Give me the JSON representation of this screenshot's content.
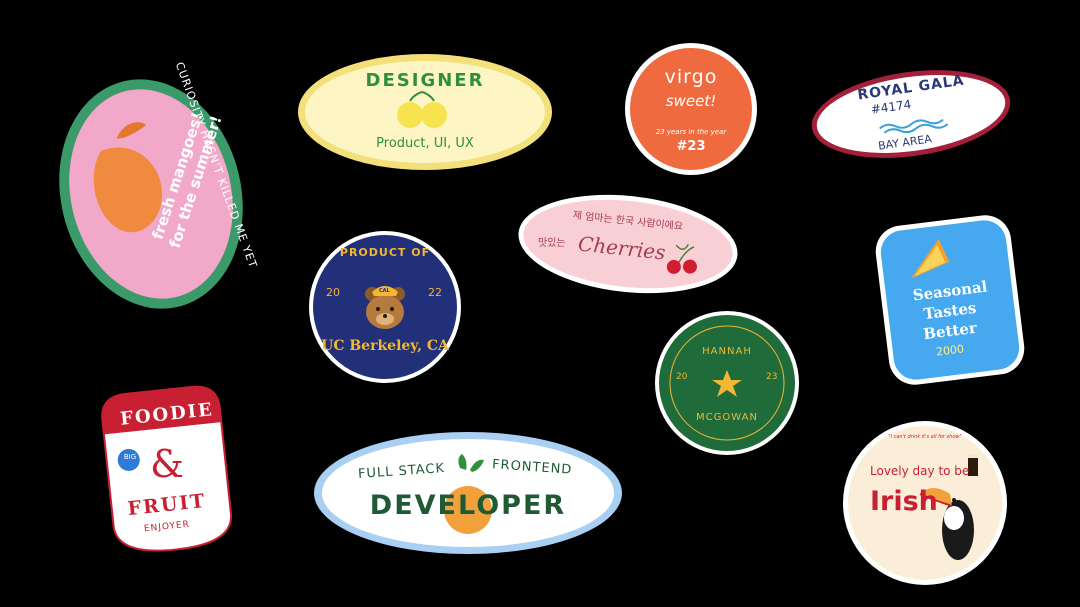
{
  "mango": {
    "text": "fresh mangoes!\nfor the summer!",
    "arc": "CURIOSITY HASN'T KILLED ME YET",
    "colors": {
      "bg": "#f2a8c8",
      "ring": "#3a9a6a"
    }
  },
  "designer": {
    "title": "DESIGNER",
    "subtitle": "Product, UI, UX",
    "colors": {
      "bg": "#fdf6c4",
      "ring": "#f3e07a",
      "text": "#2f8f3a"
    }
  },
  "virgo": {
    "title": "virgo",
    "subtitle": "sweet!",
    "note": "23 years in the year",
    "number": "#23",
    "colors": {
      "bg": "#ef6a3e",
      "ring": "#ffffff"
    }
  },
  "royal_gala": {
    "title": "ROYAL GALA",
    "code": "#4174",
    "area": "BAY AREA",
    "colors": {
      "ring": "#a51f3a",
      "text": "#2a3878",
      "wave": "#3aa0d8"
    }
  },
  "cherries": {
    "top": "제 엄마는 한국 사람이에요",
    "side": "맛있는",
    "title": "Cherries",
    "colors": {
      "bg": "#f9cfd6",
      "ring": "#ffffff",
      "text": "#a53d4d",
      "cherry": "#d21d2e"
    }
  },
  "berkeley": {
    "top": "PRODUCT OF",
    "year_left": "20",
    "year_right": "22",
    "bottom": "UC Berkeley, CA",
    "cap": "CAL",
    "colors": {
      "bg": "#22307a",
      "text": "#f2b733"
    }
  },
  "seasonal": {
    "line1": "Seasonal",
    "line2": "Tastes",
    "line3": "Better",
    "year": "2000",
    "colors": {
      "bg": "#46a9f0",
      "ring": "#ffffff"
    }
  },
  "hannah": {
    "top": "HANNAH",
    "year_left": "20",
    "year_right": "23",
    "bottom": "MCGOWAN",
    "colors": {
      "bg": "#1f6b3a",
      "text": "#f2b733"
    }
  },
  "foodie": {
    "top": "FOODIE",
    "badge": "BIG",
    "amp": "&",
    "middle": "FRUIT",
    "bottom": "ENJOYER",
    "colors": {
      "red": "#c81f32",
      "blue": "#2f7ad8",
      "bg": "#ffffff"
    }
  },
  "developer": {
    "left": "FULL STACK",
    "right": "FRONTEND",
    "title": "DEVELOPER",
    "colors": {
      "ring": "#a9cff2",
      "text": "#1f5a35",
      "orange": "#f2a13a"
    }
  },
  "irish": {
    "quote": "\"I can't drink it's all for show\"",
    "line1": "Lovely day to be",
    "line2": "Irish",
    "colors": {
      "bg": "#fbeed8",
      "ring": "#ffffff",
      "text": "#c81f32"
    }
  }
}
